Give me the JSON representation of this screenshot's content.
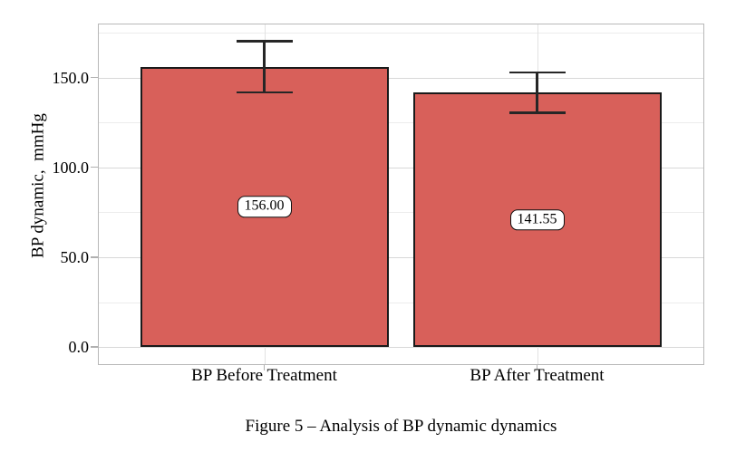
{
  "figure": {
    "caption": "Figure 5 – Analysis of BP dynamic dynamics"
  },
  "chart_data": {
    "type": "bar",
    "title": "",
    "xlabel": "",
    "ylabel": "BP dynamic,  mmHg",
    "categories": [
      "BP Before Treatment",
      "BP After Treatment"
    ],
    "values": [
      156.0,
      141.55
    ],
    "value_labels": [
      "156.00",
      "141.55"
    ],
    "errors": [
      14.2,
      11.2
    ],
    "ylim": [
      -10,
      180
    ],
    "yticks": [
      0,
      50,
      100,
      150
    ],
    "ytick_labels": [
      "0.0",
      "50.0",
      "100.0",
      "150.0"
    ],
    "minor_yticks": [
      25,
      75,
      125,
      175
    ],
    "grid": true,
    "legend": false,
    "bar_color": "#d8605a",
    "bar_border_color": "#1a1a1a",
    "error_bar_color": "#262626"
  }
}
